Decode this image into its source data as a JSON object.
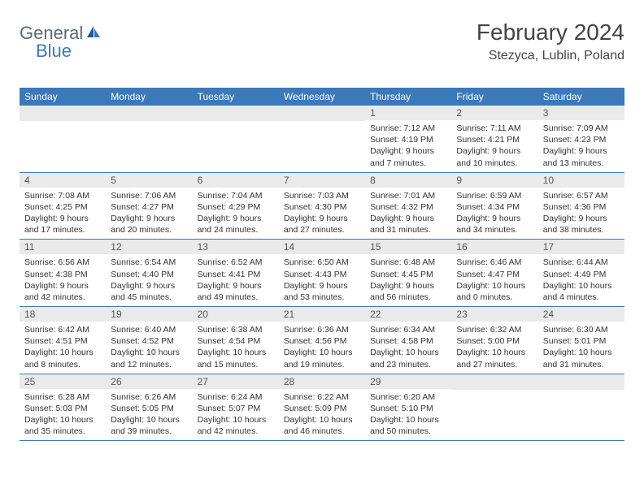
{
  "brand": {
    "name_part1": "General",
    "name_part2": "Blue",
    "icon_color": "#1a5a9e"
  },
  "header": {
    "month_title": "February 2024",
    "location": "Stezyca, Lublin, Poland"
  },
  "colors": {
    "header_bg": "#3b79b8",
    "daynum_bg": "#eaeaea",
    "text": "#333333"
  },
  "day_names": [
    "Sunday",
    "Monday",
    "Tuesday",
    "Wednesday",
    "Thursday",
    "Friday",
    "Saturday"
  ],
  "weeks": [
    [
      {
        "num": "",
        "sunrise": "",
        "sunset": "",
        "daylight": ""
      },
      {
        "num": "",
        "sunrise": "",
        "sunset": "",
        "daylight": ""
      },
      {
        "num": "",
        "sunrise": "",
        "sunset": "",
        "daylight": ""
      },
      {
        "num": "",
        "sunrise": "",
        "sunset": "",
        "daylight": ""
      },
      {
        "num": "1",
        "sunrise": "Sunrise: 7:12 AM",
        "sunset": "Sunset: 4:19 PM",
        "daylight": "Daylight: 9 hours and 7 minutes."
      },
      {
        "num": "2",
        "sunrise": "Sunrise: 7:11 AM",
        "sunset": "Sunset: 4:21 PM",
        "daylight": "Daylight: 9 hours and 10 minutes."
      },
      {
        "num": "3",
        "sunrise": "Sunrise: 7:09 AM",
        "sunset": "Sunset: 4:23 PM",
        "daylight": "Daylight: 9 hours and 13 minutes."
      }
    ],
    [
      {
        "num": "4",
        "sunrise": "Sunrise: 7:08 AM",
        "sunset": "Sunset: 4:25 PM",
        "daylight": "Daylight: 9 hours and 17 minutes."
      },
      {
        "num": "5",
        "sunrise": "Sunrise: 7:06 AM",
        "sunset": "Sunset: 4:27 PM",
        "daylight": "Daylight: 9 hours and 20 minutes."
      },
      {
        "num": "6",
        "sunrise": "Sunrise: 7:04 AM",
        "sunset": "Sunset: 4:29 PM",
        "daylight": "Daylight: 9 hours and 24 minutes."
      },
      {
        "num": "7",
        "sunrise": "Sunrise: 7:03 AM",
        "sunset": "Sunset: 4:30 PM",
        "daylight": "Daylight: 9 hours and 27 minutes."
      },
      {
        "num": "8",
        "sunrise": "Sunrise: 7:01 AM",
        "sunset": "Sunset: 4:32 PM",
        "daylight": "Daylight: 9 hours and 31 minutes."
      },
      {
        "num": "9",
        "sunrise": "Sunrise: 6:59 AM",
        "sunset": "Sunset: 4:34 PM",
        "daylight": "Daylight: 9 hours and 34 minutes."
      },
      {
        "num": "10",
        "sunrise": "Sunrise: 6:57 AM",
        "sunset": "Sunset: 4:36 PM",
        "daylight": "Daylight: 9 hours and 38 minutes."
      }
    ],
    [
      {
        "num": "11",
        "sunrise": "Sunrise: 6:56 AM",
        "sunset": "Sunset: 4:38 PM",
        "daylight": "Daylight: 9 hours and 42 minutes."
      },
      {
        "num": "12",
        "sunrise": "Sunrise: 6:54 AM",
        "sunset": "Sunset: 4:40 PM",
        "daylight": "Daylight: 9 hours and 45 minutes."
      },
      {
        "num": "13",
        "sunrise": "Sunrise: 6:52 AM",
        "sunset": "Sunset: 4:41 PM",
        "daylight": "Daylight: 9 hours and 49 minutes."
      },
      {
        "num": "14",
        "sunrise": "Sunrise: 6:50 AM",
        "sunset": "Sunset: 4:43 PM",
        "daylight": "Daylight: 9 hours and 53 minutes."
      },
      {
        "num": "15",
        "sunrise": "Sunrise: 6:48 AM",
        "sunset": "Sunset: 4:45 PM",
        "daylight": "Daylight: 9 hours and 56 minutes."
      },
      {
        "num": "16",
        "sunrise": "Sunrise: 6:46 AM",
        "sunset": "Sunset: 4:47 PM",
        "daylight": "Daylight: 10 hours and 0 minutes."
      },
      {
        "num": "17",
        "sunrise": "Sunrise: 6:44 AM",
        "sunset": "Sunset: 4:49 PM",
        "daylight": "Daylight: 10 hours and 4 minutes."
      }
    ],
    [
      {
        "num": "18",
        "sunrise": "Sunrise: 6:42 AM",
        "sunset": "Sunset: 4:51 PM",
        "daylight": "Daylight: 10 hours and 8 minutes."
      },
      {
        "num": "19",
        "sunrise": "Sunrise: 6:40 AM",
        "sunset": "Sunset: 4:52 PM",
        "daylight": "Daylight: 10 hours and 12 minutes."
      },
      {
        "num": "20",
        "sunrise": "Sunrise: 6:38 AM",
        "sunset": "Sunset: 4:54 PM",
        "daylight": "Daylight: 10 hours and 15 minutes."
      },
      {
        "num": "21",
        "sunrise": "Sunrise: 6:36 AM",
        "sunset": "Sunset: 4:56 PM",
        "daylight": "Daylight: 10 hours and 19 minutes."
      },
      {
        "num": "22",
        "sunrise": "Sunrise: 6:34 AM",
        "sunset": "Sunset: 4:58 PM",
        "daylight": "Daylight: 10 hours and 23 minutes."
      },
      {
        "num": "23",
        "sunrise": "Sunrise: 6:32 AM",
        "sunset": "Sunset: 5:00 PM",
        "daylight": "Daylight: 10 hours and 27 minutes."
      },
      {
        "num": "24",
        "sunrise": "Sunrise: 6:30 AM",
        "sunset": "Sunset: 5:01 PM",
        "daylight": "Daylight: 10 hours and 31 minutes."
      }
    ],
    [
      {
        "num": "25",
        "sunrise": "Sunrise: 6:28 AM",
        "sunset": "Sunset: 5:03 PM",
        "daylight": "Daylight: 10 hours and 35 minutes."
      },
      {
        "num": "26",
        "sunrise": "Sunrise: 6:26 AM",
        "sunset": "Sunset: 5:05 PM",
        "daylight": "Daylight: 10 hours and 39 minutes."
      },
      {
        "num": "27",
        "sunrise": "Sunrise: 6:24 AM",
        "sunset": "Sunset: 5:07 PM",
        "daylight": "Daylight: 10 hours and 42 minutes."
      },
      {
        "num": "28",
        "sunrise": "Sunrise: 6:22 AM",
        "sunset": "Sunset: 5:09 PM",
        "daylight": "Daylight: 10 hours and 46 minutes."
      },
      {
        "num": "29",
        "sunrise": "Sunrise: 6:20 AM",
        "sunset": "Sunset: 5:10 PM",
        "daylight": "Daylight: 10 hours and 50 minutes."
      },
      {
        "num": "",
        "sunrise": "",
        "sunset": "",
        "daylight": ""
      },
      {
        "num": "",
        "sunrise": "",
        "sunset": "",
        "daylight": ""
      }
    ]
  ]
}
